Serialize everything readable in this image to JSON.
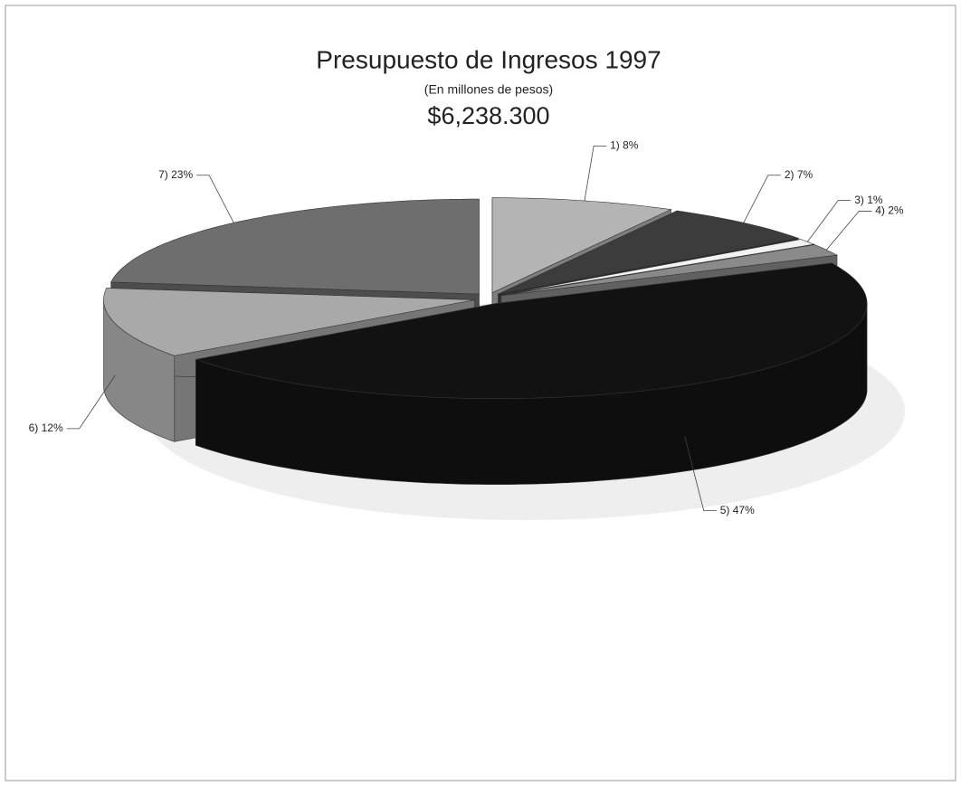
{
  "chart_data": {
    "type": "pie",
    "title": "Presupuesto de Ingresos 1997",
    "subtitle": "(En millones de pesos)",
    "total": "$6,238.300",
    "values": [
      8,
      7,
      1,
      2,
      47,
      12,
      23
    ],
    "value_labels": [
      "1) 8%",
      "2) 7%",
      "3) 1%",
      "4)  2%",
      "5) 47%",
      "6) 12%",
      "7)  23%"
    ],
    "colors": [
      "#b4b4b4",
      "#3c3c3c",
      "#f2f2f2",
      "#8a8a8a",
      "#121212",
      "#a9a9a9",
      "#6e6e6e"
    ]
  }
}
